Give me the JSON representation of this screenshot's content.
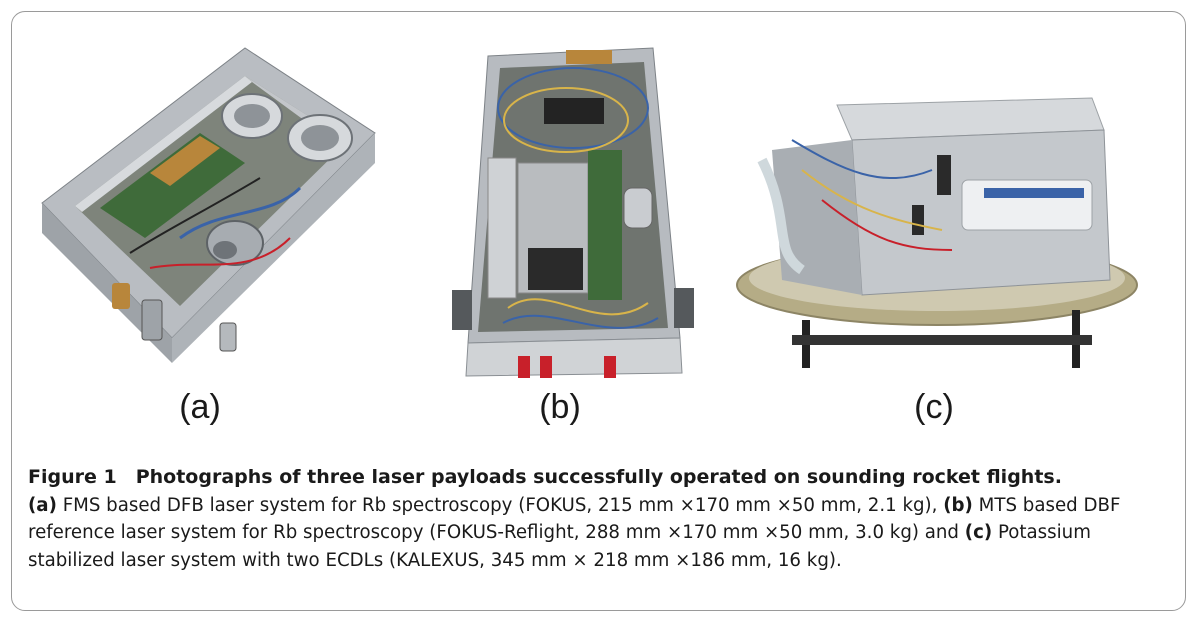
{
  "figure": {
    "panels": [
      {
        "id": "a",
        "label": "(a)"
      },
      {
        "id": "b",
        "label": "(b)"
      },
      {
        "id": "c",
        "label": "(c)"
      }
    ],
    "caption": {
      "title": "Figure 1 Photographs of three laser payloads successfully operated on sounding rocket flights.",
      "a_tag": "(a)",
      "a_text": " FMS based DFB laser system for Rb spectroscopy (FOKUS, 215 mm ×170 mm ×50 mm, 2.1 kg), ",
      "b_tag": "(b)",
      "b_text": " MTS based DBF reference laser system for Rb spectroscopy (FOKUS-Reflight, 288 mm ×170 mm ×50 mm, 3.0 kg) and ",
      "c_tag": "(c)",
      "c_text": " Potassium stabilized laser system with two ECDLs (KALEXUS, 345 mm × 218 mm ×186 mm, 16 kg)."
    },
    "colors": {
      "aluminum": "#c9ccd0",
      "aluminum_dark": "#8e9398",
      "pcb_green": "#3f6b3a",
      "copper": "#b8863b",
      "connector_red": "#c8202a",
      "cable_blue": "#3a63a8"
    }
  }
}
